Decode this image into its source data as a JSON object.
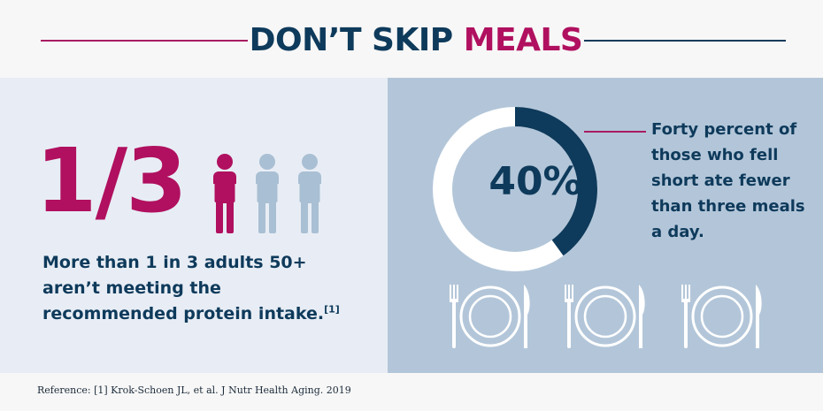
{
  "header": {
    "title_part1": "DON’T SKIP ",
    "title_part2": "MEALS"
  },
  "left_panel": {
    "fraction": "1/3",
    "people": [
      {
        "highlighted": true
      },
      {
        "highlighted": false
      },
      {
        "highlighted": false
      }
    ],
    "statement": "More than 1 in 3 adults 50+ aren’t meeting the recommended protein intake.",
    "citation_marker": "[1]"
  },
  "right_panel": {
    "percent_label": "40%",
    "percent_value": 40,
    "statement": "Forty percent of those who fell short ate fewer than three meals a day.",
    "plate_count": 3
  },
  "footer": {
    "reference": "Reference: [1] Krok-Schoen JL, et al. J Nutr Health Aging. 2019"
  },
  "colors": {
    "navy": "#0e3a5b",
    "magenta": "#b0105f",
    "person_muted": "#a9bfd3",
    "left_bg": "#e8edf5",
    "right_bg": "#b3c6d9",
    "plate_white": "#ffffff"
  }
}
